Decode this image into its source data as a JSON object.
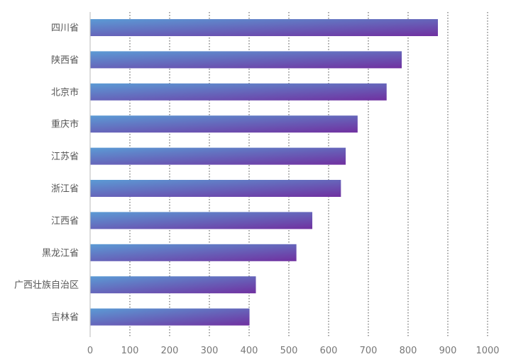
{
  "chart_data": {
    "type": "bar",
    "orientation": "horizontal",
    "title": "",
    "xlabel": "",
    "ylabel": "",
    "categories": [
      "四川省",
      "陕西省",
      "北京市",
      "重庆市",
      "江苏省",
      "浙江省",
      "江西省",
      "黑龙江省",
      "广西壮族自治区",
      "吉林省"
    ],
    "values": [
      875,
      784,
      746,
      673,
      643,
      631,
      559,
      519,
      417,
      401
    ],
    "xlim": [
      0,
      1000
    ],
    "xticks": [
      "0",
      "100",
      "200",
      "300",
      "400",
      "500",
      "600",
      "700",
      "800",
      "900",
      "1000"
    ],
    "grid": "vertical-dotted",
    "legend": "none",
    "colors": {
      "bar_start": "#5b9bd5",
      "bar_end": "#7030a0",
      "grid": "#4a4a4a",
      "axis": "#c4c4c4",
      "text": "#555555"
    }
  }
}
